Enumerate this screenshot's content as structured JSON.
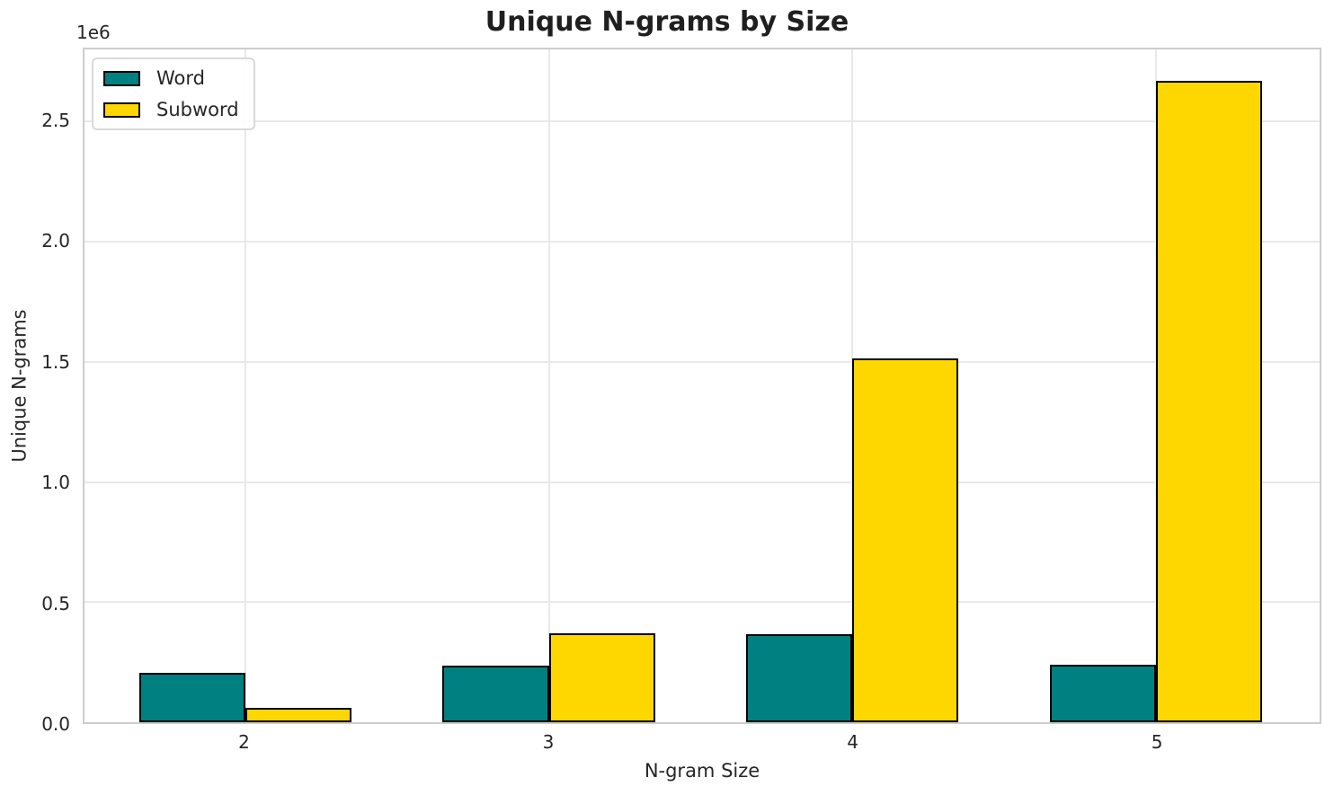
{
  "chart_data": {
    "type": "bar",
    "title": "Unique N-grams by Size",
    "xlabel": "N-gram Size",
    "ylabel": "Unique N-grams",
    "y_offset_label": "1e6",
    "categories": [
      2,
      3,
      4,
      5
    ],
    "series": [
      {
        "name": "Word",
        "color": "#008080",
        "values": [
          207000,
          236000,
          368000,
          238000
        ]
      },
      {
        "name": "Subword",
        "color": "#FFD700",
        "values": [
          60000,
          370000,
          1515000,
          2670000
        ]
      }
    ],
    "bar_width": 0.35,
    "bar_edge_color": "#000000",
    "xlim": [
      1.47,
      5.54
    ],
    "ylim": [
      0,
      2800000
    ],
    "yticks": [
      0,
      500000,
      1000000,
      1500000,
      2000000,
      2500000
    ],
    "ytick_labels": [
      "0.0",
      "0.5",
      "1.0",
      "1.5",
      "2.0",
      "2.5"
    ],
    "xtick_labels": [
      "2",
      "3",
      "4",
      "5"
    ],
    "grid": true,
    "legend_position": "upper left",
    "grid_color": "#e9e9e9",
    "spine_color": "#cdcdcd",
    "text_color": "#262626"
  }
}
